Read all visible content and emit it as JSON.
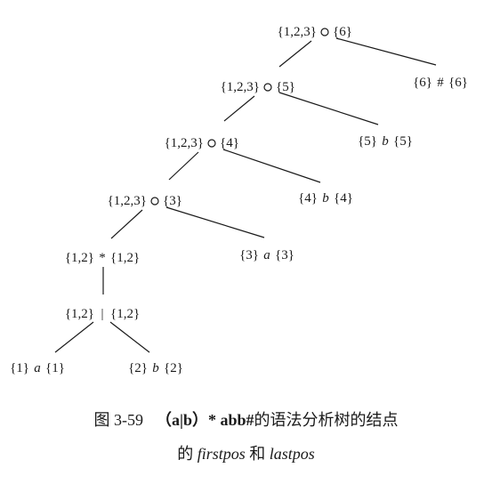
{
  "nodes": [
    {
      "id": "cat1",
      "first": "{1,2,3}",
      "symbol": "cat",
      "last": "{6}"
    },
    {
      "id": "hash",
      "first": "{6}",
      "symbol": "#",
      "last": "{6}"
    },
    {
      "id": "cat2",
      "first": "{1,2,3}",
      "symbol": "cat",
      "last": "{5}"
    },
    {
      "id": "b5",
      "first": "{5}",
      "symbol": "b",
      "last": "{5}"
    },
    {
      "id": "cat3",
      "first": "{1,2,3}",
      "symbol": "cat",
      "last": "{4}"
    },
    {
      "id": "b4",
      "first": "{4}",
      "symbol": "b",
      "last": "{4}"
    },
    {
      "id": "cat4",
      "first": "{1,2,3}",
      "symbol": "cat",
      "last": "{3}"
    },
    {
      "id": "a3",
      "first": "{3}",
      "symbol": "a",
      "last": "{3}"
    },
    {
      "id": "star",
      "first": "{1,2}",
      "symbol": "*",
      "last": "{1,2}"
    },
    {
      "id": "or",
      "first": "{1,2}",
      "symbol": "|",
      "last": "{1,2}"
    },
    {
      "id": "a1",
      "first": "{1}",
      "symbol": "a",
      "last": "{1}"
    },
    {
      "id": "b2",
      "first": "{2}",
      "symbol": "b",
      "last": "{2}"
    }
  ],
  "edges": [
    [
      "cat1",
      "cat2"
    ],
    [
      "cat1",
      "hash"
    ],
    [
      "cat2",
      "cat3"
    ],
    [
      "cat2",
      "b5"
    ],
    [
      "cat3",
      "cat4"
    ],
    [
      "cat3",
      "b4"
    ],
    [
      "cat4",
      "star"
    ],
    [
      "cat4",
      "a3"
    ],
    [
      "star",
      "or"
    ],
    [
      "or",
      "a1"
    ],
    [
      "or",
      "b2"
    ]
  ],
  "caption": {
    "figure": "图 3-59",
    "regex": "（a|b）* abb#",
    "text1": "的语法分析树的结点",
    "text2": "的",
    "firstpos": "firstpos",
    "and": "和",
    "lastpos": "lastpos"
  }
}
